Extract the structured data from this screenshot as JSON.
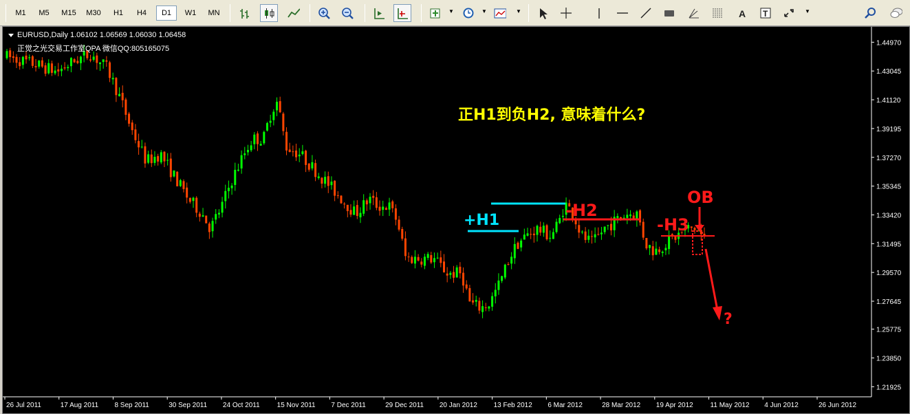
{
  "timeframes": [
    {
      "label": "M1",
      "active": false
    },
    {
      "label": "M5",
      "active": false
    },
    {
      "label": "M15",
      "active": false
    },
    {
      "label": "M30",
      "active": false
    },
    {
      "label": "H1",
      "active": false
    },
    {
      "label": "H4",
      "active": false
    },
    {
      "label": "D1",
      "active": true
    },
    {
      "label": "W1",
      "active": false
    },
    {
      "label": "MN",
      "active": false
    }
  ],
  "toolbar_tools": [
    "bar-chart-icon",
    "candlestick-chart-icon",
    "line-chart-icon",
    "zoom-in-icon",
    "zoom-out-icon",
    "chart-shift-icon",
    "auto-scroll-icon",
    "indicators-icon",
    "periods-icon",
    "templates-icon",
    "cursor-icon",
    "crosshair-icon",
    "vertical-line-icon",
    "horizontal-line-icon",
    "trendline-icon",
    "rectangle-icon",
    "gann-icon",
    "fibonacci-icon",
    "text-icon",
    "text-label-icon",
    "arrows-icon",
    "search-icon",
    "chat-icon"
  ],
  "chart_info": {
    "symbol_line": "EURUSD,Daily  1.06102 1.06569 1.06030 1.06458",
    "watermark": "正觉之光交易工作室QPA 微信QQ:805165075"
  },
  "annotations": {
    "question": "正H1到负H2, 意味着什么?",
    "h1": "+H1",
    "h2": "-H2",
    "h3": "-H3",
    "ob": "OB",
    "qmark": "?",
    "colors": {
      "cyan": "#00e5ff",
      "red": "#ff1a1a",
      "yellow": "#ffff00"
    }
  },
  "chart_data": {
    "type": "candlestick",
    "symbol": "EURUSD",
    "timeframe": "Daily",
    "ohlc_last": {
      "open": 1.06102,
      "high": 1.06569,
      "low": 1.0603,
      "close": 1.06458
    },
    "price_ticks": [
      "1.44970",
      "1.43045",
      "1.41120",
      "1.39195",
      "1.37270",
      "1.35345",
      "1.33420",
      "1.31495",
      "1.29570",
      "1.27645",
      "1.25775",
      "1.23850",
      "1.21925"
    ],
    "ylim": [
      1.2125,
      1.46
    ],
    "date_ticks": [
      "26 Jul 2011",
      "17 Aug 2011",
      "8 Sep 2011",
      "30 Sep 2011",
      "24 Oct 2011",
      "15 Nov 2011",
      "7 Dec 2011",
      "29 Dec 2011",
      "20 Jan 2012",
      "13 Feb 2012",
      "6 Mar 2012",
      "28 Mar 2012",
      "19 Apr 2012",
      "11 May 2012",
      "4 Jun 2012",
      "26 Jun 2012"
    ],
    "bar_count": 218,
    "bull_color": "#00ff00",
    "bear_color": "#ff4500",
    "close_path": [
      [
        0,
        1.44
      ],
      [
        10,
        1.435
      ],
      [
        18,
        1.43
      ],
      [
        25,
        1.438
      ],
      [
        30,
        1.442
      ],
      [
        36,
        1.432
      ],
      [
        40,
        1.415
      ],
      [
        45,
        1.39
      ],
      [
        50,
        1.37
      ],
      [
        55,
        1.375
      ],
      [
        60,
        1.36
      ],
      [
        65,
        1.345
      ],
      [
        70,
        1.335
      ],
      [
        73,
        1.325
      ],
      [
        77,
        1.34
      ],
      [
        80,
        1.355
      ],
      [
        85,
        1.375
      ],
      [
        88,
        1.385
      ],
      [
        92,
        1.385
      ],
      [
        95,
        1.405
      ],
      [
        97,
        1.41
      ],
      [
        100,
        1.38
      ],
      [
        105,
        1.375
      ],
      [
        110,
        1.365
      ],
      [
        115,
        1.355
      ],
      [
        120,
        1.345
      ],
      [
        125,
        1.335
      ],
      [
        130,
        1.345
      ],
      [
        133,
        1.34
      ],
      [
        137,
        1.34
      ],
      [
        140,
        1.33
      ],
      [
        143,
        1.305
      ],
      [
        148,
        1.305
      ],
      [
        153,
        1.305
      ],
      [
        158,
        1.295
      ],
      [
        163,
        1.295
      ],
      [
        166,
        1.275
      ],
      [
        170,
        1.272
      ],
      [
        173,
        1.275
      ],
      [
        177,
        1.29
      ],
      [
        180,
        1.305
      ],
      [
        183,
        1.315
      ],
      [
        186,
        1.32
      ],
      [
        190,
        1.325
      ],
      [
        195,
        1.32
      ],
      [
        198,
        1.33
      ],
      [
        200,
        1.342
      ],
      [
        203,
        1.335
      ],
      [
        206,
        1.32
      ],
      [
        210,
        1.315
      ],
      [
        214,
        1.325
      ],
      [
        218,
        1.33
      ],
      [
        222,
        1.335
      ],
      [
        226,
        1.335
      ],
      [
        229,
        1.315
      ],
      [
        232,
        1.31
      ],
      [
        236,
        1.315
      ],
      [
        240,
        1.32
      ],
      [
        244,
        1.325
      ],
      [
        247,
        1.325
      ],
      [
        250,
        1.318
      ]
    ]
  }
}
